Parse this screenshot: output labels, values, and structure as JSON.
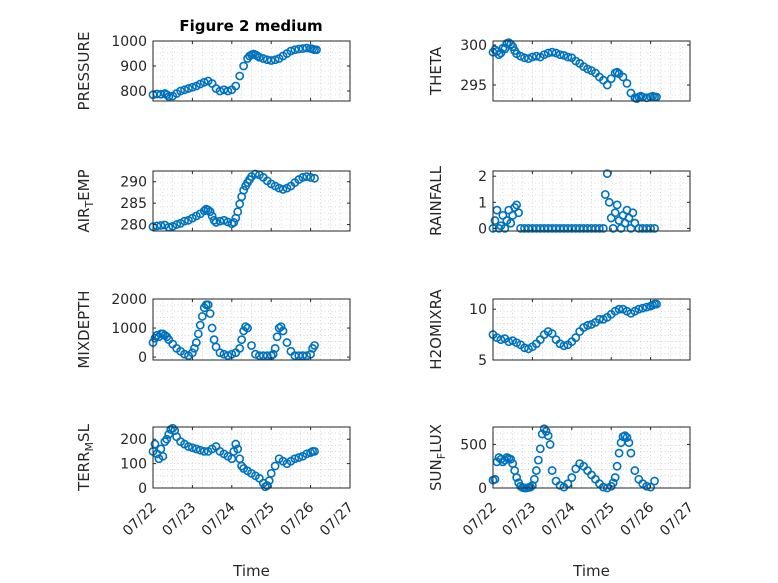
{
  "figure": {
    "title": "Figure 2 medium"
  },
  "colors": {
    "marker": "#0072bd",
    "axes": "#262626",
    "grid": "#bdbdbd"
  },
  "chart_data": [
    {
      "type": "scatter",
      "ylabel": "PRESSURE",
      "xlabel": "",
      "xlim": [
        0,
        5
      ],
      "ylim": [
        760,
        1000
      ],
      "yticks": [
        800,
        900,
        1000
      ],
      "grid": true,
      "x": [
        0.0,
        0.1,
        0.2,
        0.3,
        0.35,
        0.4,
        0.5,
        0.6,
        0.7,
        0.8,
        0.9,
        1.0,
        1.1,
        1.2,
        1.3,
        1.4,
        1.5,
        1.6,
        1.7,
        1.8,
        1.9,
        2.0,
        2.1,
        2.2,
        2.3,
        2.4,
        2.45,
        2.5,
        2.55,
        2.6,
        2.65,
        2.7,
        2.8,
        2.9,
        3.0,
        3.1,
        3.2,
        3.3,
        3.4,
        3.5,
        3.6,
        3.7,
        3.8,
        3.9,
        4.0,
        4.05,
        4.1,
        4.15
      ],
      "y": [
        785,
        788,
        787,
        790,
        785,
        778,
        780,
        790,
        800,
        805,
        810,
        815,
        820,
        828,
        835,
        840,
        830,
        810,
        800,
        805,
        800,
        805,
        820,
        860,
        900,
        930,
        940,
        945,
        948,
        945,
        940,
        935,
        930,
        925,
        922,
        925,
        930,
        940,
        950,
        960,
        965,
        968,
        970,
        972,
        970,
        968,
        965,
        965
      ]
    },
    {
      "type": "scatter",
      "ylabel": "THETA",
      "xlabel": "",
      "xlim": [
        0,
        5
      ],
      "ylim": [
        293,
        300.5
      ],
      "yticks": [
        295,
        300
      ],
      "grid": true,
      "x": [
        0.0,
        0.05,
        0.1,
        0.15,
        0.2,
        0.25,
        0.3,
        0.35,
        0.4,
        0.45,
        0.5,
        0.55,
        0.6,
        0.7,
        0.8,
        0.9,
        1.0,
        1.1,
        1.2,
        1.3,
        1.4,
        1.5,
        1.6,
        1.7,
        1.8,
        1.9,
        2.0,
        2.1,
        2.2,
        2.3,
        2.4,
        2.5,
        2.6,
        2.7,
        2.8,
        2.9,
        3.0,
        3.1,
        3.15,
        3.2,
        3.3,
        3.4,
        3.5,
        3.6,
        3.65,
        3.7,
        3.75,
        3.8,
        3.9,
        4.0,
        4.05,
        4.1,
        4.15
      ],
      "y": [
        299.1,
        299.4,
        299.2,
        298.8,
        299.0,
        299.6,
        299.5,
        300.2,
        300.3,
        300.1,
        299.8,
        299.3,
        298.9,
        298.6,
        298.4,
        298.3,
        298.5,
        298.6,
        298.5,
        298.8,
        299.0,
        299.1,
        299.0,
        298.8,
        298.7,
        298.5,
        298.4,
        298.0,
        297.7,
        297.3,
        297.0,
        296.8,
        296.5,
        296.0,
        295.6,
        295.0,
        295.8,
        296.5,
        296.6,
        296.4,
        296.0,
        295.2,
        294.0,
        293.4,
        293.3,
        293.5,
        293.6,
        293.5,
        293.4,
        293.5,
        293.6,
        293.5,
        293.5
      ]
    },
    {
      "type": "scatter",
      "ylabel": "AIR_TEMP",
      "xlabel": "",
      "xlim": [
        0,
        5
      ],
      "ylim": [
        278.5,
        292.5
      ],
      "yticks": [
        280,
        285,
        290
      ],
      "grid": true,
      "x": [
        0.0,
        0.1,
        0.2,
        0.3,
        0.4,
        0.5,
        0.6,
        0.7,
        0.8,
        0.9,
        1.0,
        1.1,
        1.2,
        1.3,
        1.35,
        1.4,
        1.45,
        1.5,
        1.55,
        1.6,
        1.7,
        1.8,
        1.9,
        2.0,
        2.05,
        2.1,
        2.15,
        2.2,
        2.25,
        2.3,
        2.35,
        2.4,
        2.45,
        2.5,
        2.6,
        2.7,
        2.8,
        2.9,
        3.0,
        3.1,
        3.2,
        3.3,
        3.4,
        3.5,
        3.6,
        3.7,
        3.8,
        3.9,
        4.0,
        4.1
      ],
      "y": [
        279.5,
        279.7,
        279.8,
        279.9,
        279.4,
        279.6,
        280.0,
        280.3,
        280.8,
        281.0,
        281.5,
        282.0,
        282.5,
        283.2,
        283.6,
        283.4,
        283.0,
        282.0,
        281.0,
        280.5,
        280.8,
        281.0,
        280.6,
        280.2,
        280.5,
        281.5,
        283.0,
        284.8,
        286.5,
        288.0,
        289.0,
        289.8,
        290.5,
        291.2,
        291.8,
        291.6,
        291.0,
        290.2,
        289.5,
        289.0,
        288.5,
        288.2,
        288.5,
        289.0,
        289.8,
        290.5,
        291.0,
        291.2,
        291.0,
        290.8
      ]
    },
    {
      "type": "scatter",
      "ylabel": "RAINFALL",
      "xlabel": "",
      "xlim": [
        0,
        5
      ],
      "ylim": [
        -0.1,
        2.2
      ],
      "yticks": [
        0,
        1,
        2
      ],
      "grid": true,
      "x": [
        0.0,
        0.05,
        0.1,
        0.15,
        0.2,
        0.25,
        0.3,
        0.35,
        0.4,
        0.45,
        0.5,
        0.55,
        0.6,
        0.65,
        0.7,
        0.8,
        0.9,
        1.0,
        1.1,
        1.2,
        1.3,
        1.4,
        1.5,
        1.6,
        1.7,
        1.8,
        1.9,
        2.0,
        2.1,
        2.2,
        2.3,
        2.4,
        2.5,
        2.6,
        2.7,
        2.8,
        2.85,
        2.9,
        2.95,
        3.0,
        3.05,
        3.1,
        3.15,
        3.2,
        3.25,
        3.3,
        3.35,
        3.4,
        3.45,
        3.5,
        3.55,
        3.6,
        3.7,
        3.8,
        3.9,
        4.0,
        4.1
      ],
      "y": [
        0.0,
        0.3,
        0.7,
        0.0,
        0.1,
        0.5,
        0.0,
        0.3,
        0.7,
        0.2,
        0.5,
        0.8,
        0.9,
        0.6,
        0.0,
        0.0,
        0.0,
        0.0,
        0.0,
        0.0,
        0.0,
        0.0,
        0.0,
        0.0,
        0.0,
        0.0,
        0.0,
        0.0,
        0.0,
        0.0,
        0.0,
        0.0,
        0.0,
        0.0,
        0.0,
        0.0,
        1.3,
        2.1,
        1.0,
        0.4,
        0.0,
        0.6,
        0.9,
        0.3,
        0.0,
        0.5,
        0.2,
        0.7,
        0.4,
        0.0,
        0.6,
        0.2,
        0.0,
        0.0,
        0.0,
        0.0,
        0.0
      ]
    },
    {
      "type": "scatter",
      "ylabel": "MIXDEPTH",
      "xlabel": "",
      "xlim": [
        0,
        5
      ],
      "ylim": [
        -100,
        2000
      ],
      "yticks": [
        0,
        1000,
        2000
      ],
      "grid": true,
      "x": [
        0.0,
        0.05,
        0.1,
        0.15,
        0.2,
        0.25,
        0.3,
        0.35,
        0.4,
        0.5,
        0.6,
        0.7,
        0.8,
        0.9,
        1.0,
        1.05,
        1.1,
        1.15,
        1.2,
        1.25,
        1.3,
        1.35,
        1.4,
        1.45,
        1.5,
        1.55,
        1.6,
        1.7,
        1.8,
        1.9,
        2.0,
        2.1,
        2.2,
        2.25,
        2.3,
        2.35,
        2.4,
        2.5,
        2.6,
        2.7,
        2.8,
        2.9,
        3.0,
        3.05,
        3.1,
        3.15,
        3.2,
        3.25,
        3.3,
        3.4,
        3.5,
        3.6,
        3.7,
        3.8,
        3.9,
        4.0,
        4.05,
        4.1
      ],
      "y": [
        500,
        650,
        750,
        700,
        800,
        800,
        750,
        700,
        600,
        450,
        300,
        200,
        100,
        50,
        150,
        300,
        500,
        800,
        1100,
        1400,
        1700,
        1800,
        1800,
        1500,
        1000,
        600,
        350,
        150,
        100,
        50,
        100,
        150,
        300,
        600,
        900,
        1050,
        1000,
        400,
        100,
        50,
        50,
        50,
        50,
        100,
        300,
        700,
        1000,
        1050,
        900,
        500,
        200,
        50,
        50,
        50,
        50,
        100,
        300,
        400
      ]
    },
    {
      "type": "scatter",
      "ylabel": "H2OMIXRA",
      "xlabel": "",
      "xlim": [
        0,
        5
      ],
      "ylim": [
        5,
        11
      ],
      "yticks": [
        5,
        10
      ],
      "grid": true,
      "x": [
        0.0,
        0.1,
        0.2,
        0.3,
        0.4,
        0.5,
        0.6,
        0.7,
        0.8,
        0.9,
        1.0,
        1.1,
        1.2,
        1.3,
        1.4,
        1.5,
        1.6,
        1.7,
        1.8,
        1.9,
        2.0,
        2.1,
        2.2,
        2.3,
        2.4,
        2.5,
        2.6,
        2.7,
        2.8,
        2.9,
        3.0,
        3.1,
        3.2,
        3.3,
        3.4,
        3.5,
        3.6,
        3.7,
        3.8,
        3.9,
        4.0,
        4.05,
        4.1,
        4.15
      ],
      "y": [
        7.5,
        7.2,
        7.0,
        7.1,
        6.8,
        6.9,
        6.7,
        6.5,
        6.2,
        6.1,
        6.3,
        6.6,
        7.0,
        7.5,
        7.8,
        7.6,
        7.0,
        6.6,
        6.4,
        6.5,
        6.8,
        7.2,
        7.8,
        8.2,
        8.4,
        8.5,
        8.7,
        9.0,
        9.0,
        9.2,
        9.5,
        9.8,
        10.0,
        10.0,
        9.8,
        9.6,
        9.8,
        10.0,
        10.1,
        10.2,
        10.3,
        10.4,
        10.5,
        10.5
      ]
    },
    {
      "type": "scatter",
      "ylabel": "TERR_MSL",
      "xlabel": "Time",
      "xlim": [
        0,
        5
      ],
      "ylim": [
        0,
        250
      ],
      "yticks": [
        0,
        100,
        200
      ],
      "grid": true,
      "xticks": [
        "07/22",
        "07/23",
        "07/24",
        "07/25",
        "07/26",
        "07/27"
      ],
      "x": [
        0.0,
        0.05,
        0.1,
        0.15,
        0.2,
        0.25,
        0.3,
        0.35,
        0.4,
        0.45,
        0.5,
        0.55,
        0.6,
        0.7,
        0.8,
        0.9,
        1.0,
        1.1,
        1.2,
        1.3,
        1.4,
        1.5,
        1.6,
        1.7,
        1.8,
        1.9,
        2.0,
        2.05,
        2.1,
        2.15,
        2.2,
        2.25,
        2.3,
        2.4,
        2.5,
        2.6,
        2.7,
        2.8,
        2.85,
        2.9,
        2.95,
        3.0,
        3.1,
        3.2,
        3.3,
        3.4,
        3.5,
        3.6,
        3.7,
        3.8,
        3.9,
        4.0,
        4.05,
        4.1
      ],
      "y": [
        150,
        180,
        140,
        120,
        160,
        130,
        190,
        200,
        220,
        240,
        245,
        235,
        210,
        190,
        180,
        170,
        165,
        160,
        155,
        150,
        150,
        160,
        170,
        150,
        140,
        130,
        120,
        150,
        180,
        160,
        120,
        90,
        80,
        70,
        60,
        50,
        40,
        20,
        5,
        10,
        30,
        60,
        90,
        120,
        110,
        100,
        110,
        120,
        125,
        130,
        140,
        145,
        150,
        150
      ]
    },
    {
      "type": "scatter",
      "ylabel": "SUN_FLUX",
      "xlabel": "Time",
      "xlim": [
        0,
        5
      ],
      "ylim": [
        0,
        700
      ],
      "yticks": [
        0,
        500
      ],
      "grid": true,
      "xticks": [
        "07/22",
        "07/23",
        "07/24",
        "07/25",
        "07/26",
        "07/27"
      ],
      "x": [
        0.0,
        0.05,
        0.1,
        0.15,
        0.2,
        0.25,
        0.3,
        0.35,
        0.4,
        0.45,
        0.5,
        0.55,
        0.6,
        0.65,
        0.7,
        0.75,
        0.8,
        0.85,
        0.9,
        0.95,
        1.0,
        1.05,
        1.1,
        1.15,
        1.2,
        1.25,
        1.3,
        1.35,
        1.4,
        1.45,
        1.5,
        1.6,
        1.7,
        1.8,
        1.9,
        2.0,
        2.1,
        2.2,
        2.3,
        2.4,
        2.5,
        2.6,
        2.7,
        2.8,
        2.9,
        3.0,
        3.05,
        3.1,
        3.15,
        3.2,
        3.25,
        3.3,
        3.35,
        3.4,
        3.45,
        3.5,
        3.6,
        3.7,
        3.8,
        3.9,
        4.0,
        4.1
      ],
      "y": [
        90,
        100,
        300,
        350,
        330,
        300,
        320,
        350,
        340,
        330,
        280,
        200,
        120,
        60,
        20,
        5,
        0,
        0,
        5,
        10,
        30,
        100,
        200,
        320,
        450,
        620,
        680,
        650,
        600,
        500,
        200,
        80,
        30,
        10,
        50,
        120,
        220,
        280,
        250,
        200,
        150,
        100,
        50,
        10,
        0,
        20,
        60,
        120,
        250,
        400,
        520,
        590,
        600,
        580,
        520,
        400,
        200,
        100,
        50,
        20,
        10,
        80
      ]
    }
  ]
}
